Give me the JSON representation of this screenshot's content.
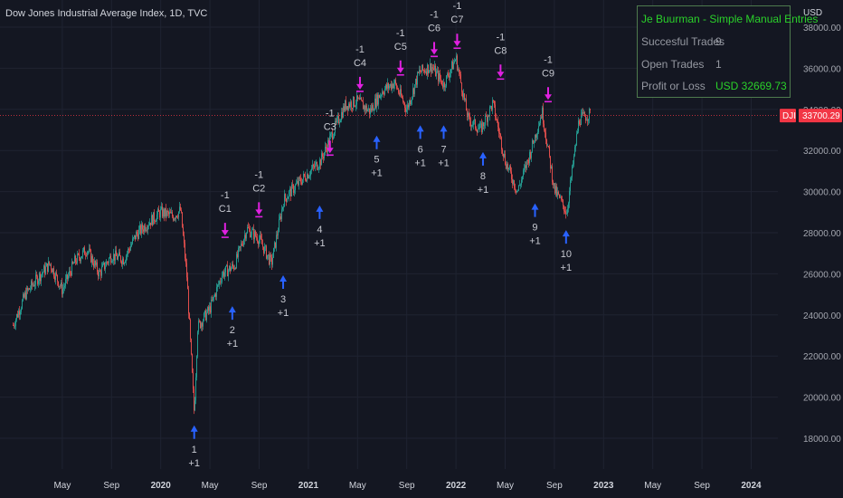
{
  "chart": {
    "title": "Dow Jones Industrial Average Index, 1D, TVC",
    "currency": "USD",
    "ticker": "DJI",
    "last_price": "33700.29",
    "y_ticks": [
      "38000.00",
      "36000.00",
      "34000.00",
      "32000.00",
      "30000.00",
      "28000.00",
      "26000.00",
      "24000.00",
      "22000.00",
      "20000.00",
      "18000.00"
    ],
    "x_ticks": [
      "May",
      "Sep",
      "2020",
      "May",
      "Sep",
      "2021",
      "May",
      "Sep",
      "2022",
      "May",
      "Sep",
      "2023",
      "May",
      "Sep",
      "2024"
    ]
  },
  "colors": {
    "background": "#141722",
    "up_candle": "#26a69a",
    "down_candle": "#ef5350",
    "buy_arrow": "#2962ff",
    "sell_arrow": "#e020e0",
    "box_header": "#2ad12a",
    "price_badge": "#f23645"
  },
  "info_box": {
    "header": "Je Buurman - Simple Manual Entries",
    "successful_label": "Succesful Trades",
    "successful_value": "9",
    "open_label": "Open Trades",
    "open_value": "1",
    "pl_label": "Profit or Loss",
    "pl_value": "USD 32669.73"
  },
  "chart_data": {
    "type": "candlestick",
    "title": "Dow Jones Industrial Average Index, 1D, TVC",
    "ylim": [
      17000,
      38800
    ],
    "x_range": [
      "2019-01",
      "2024-06"
    ],
    "price_path": [
      [
        "2019-01",
        23500
      ],
      [
        "2019-02",
        25000
      ],
      [
        "2019-03",
        25800
      ],
      [
        "2019-04",
        26500
      ],
      [
        "2019-05",
        25200
      ],
      [
        "2019-06",
        26600
      ],
      [
        "2019-07",
        27200
      ],
      [
        "2019-08",
        26000
      ],
      [
        "2019-09",
        26900
      ],
      [
        "2019-10",
        26700
      ],
      [
        "2019-11",
        27900
      ],
      [
        "2019-12",
        28500
      ],
      [
        "2020-01",
        29000
      ],
      [
        "2020-02",
        28800
      ],
      [
        "2020-02-20",
        29100
      ],
      [
        "2020-03-05",
        25800
      ],
      [
        "2020-03-23",
        19200
      ],
      [
        "2020-04",
        23400
      ],
      [
        "2020-05",
        24300
      ],
      [
        "2020-06",
        26000
      ],
      [
        "2020-07",
        26400
      ],
      [
        "2020-08",
        28200
      ],
      [
        "2020-09",
        27700
      ],
      [
        "2020-10",
        26500
      ],
      [
        "2020-11",
        29600
      ],
      [
        "2020-12",
        30300
      ],
      [
        "2021-01",
        30900
      ],
      [
        "2021-02",
        31500
      ],
      [
        "2021-03",
        32900
      ],
      [
        "2021-04",
        34200
      ],
      [
        "2021-05",
        34400
      ],
      [
        "2021-06",
        33900
      ],
      [
        "2021-07",
        34900
      ],
      [
        "2021-08",
        35300
      ],
      [
        "2021-09",
        34000
      ],
      [
        "2021-10",
        35800
      ],
      [
        "2021-11",
        36100
      ],
      [
        "2021-12",
        35200
      ],
      [
        "2022-01",
        36500
      ],
      [
        "2022-02",
        33500
      ],
      [
        "2022-03",
        33000
      ],
      [
        "2022-04",
        34300
      ],
      [
        "2022-05",
        31500
      ],
      [
        "2022-06",
        30000
      ],
      [
        "2022-07",
        31800
      ],
      [
        "2022-08",
        33900
      ],
      [
        "2022-09",
        30100
      ],
      [
        "2022-10",
        29000
      ],
      [
        "2022-11",
        33500
      ],
      [
        "2022-11-30",
        33800
      ]
    ],
    "buy_signals": [
      {
        "date": "2020-03-23",
        "price": 19200,
        "number": "1",
        "result": "+1"
      },
      {
        "date": "2020-06-26",
        "price": 25000,
        "number": "2",
        "result": "+1"
      },
      {
        "date": "2020-10-30",
        "price": 26500,
        "number": "3",
        "result": "+1"
      },
      {
        "date": "2021-01-29",
        "price": 29900,
        "number": "4",
        "result": "+1"
      },
      {
        "date": "2021-06-18",
        "price": 33300,
        "number": "5",
        "result": "+1"
      },
      {
        "date": "2021-10-04",
        "price": 33800,
        "number": "6",
        "result": "+1"
      },
      {
        "date": "2021-12-01",
        "price": 33800,
        "number": "7",
        "result": "+1"
      },
      {
        "date": "2022-03-07",
        "price": 32500,
        "number": "8",
        "result": "+1"
      },
      {
        "date": "2022-07-14",
        "price": 30000,
        "number": "9",
        "result": "+1"
      },
      {
        "date": "2022-09-30",
        "price": 28700,
        "number": "10",
        "result": "+1"
      }
    ],
    "sell_signals": [
      {
        "date": "2020-06-08",
        "price": 27600,
        "label": "C1",
        "result": "-1"
      },
      {
        "date": "2020-08-31",
        "price": 28600,
        "label": "C2",
        "result": "-1"
      },
      {
        "date": "2021-02-24",
        "price": 31600,
        "label": "C3",
        "result": "-1"
      },
      {
        "date": "2021-05-07",
        "price": 34700,
        "label": "C4",
        "result": "-1"
      },
      {
        "date": "2021-08-16",
        "price": 35500,
        "label": "C5",
        "result": "-1"
      },
      {
        "date": "2021-11-08",
        "price": 36400,
        "label": "C6",
        "result": "-1"
      },
      {
        "date": "2022-01-04",
        "price": 36800,
        "label": "C7",
        "result": "-1"
      },
      {
        "date": "2022-04-20",
        "price": 35300,
        "label": "C8",
        "result": "-1"
      },
      {
        "date": "2022-08-16",
        "price": 34200,
        "label": "C9",
        "result": "-1"
      }
    ]
  }
}
